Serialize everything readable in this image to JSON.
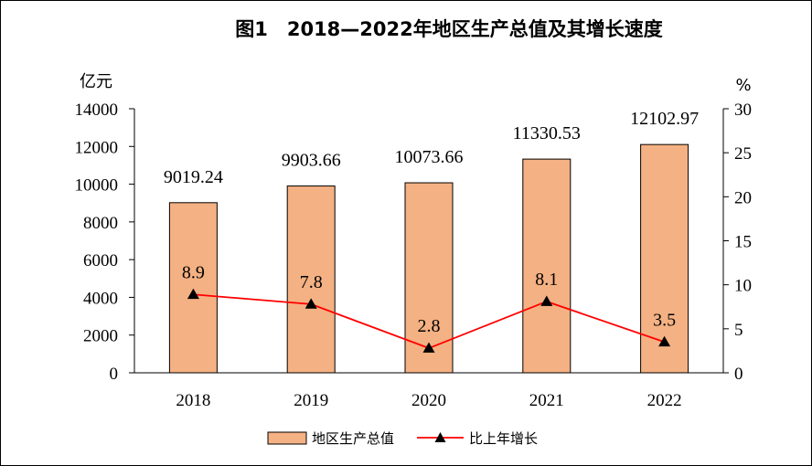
{
  "chart_data": {
    "type": "bar",
    "title": "图1　2018—2022年地区生产总值及其增长速度",
    "left_axis_unit": "亿元",
    "right_axis_unit": "%",
    "categories": [
      "2018",
      "2019",
      "2020",
      "2021",
      "2022"
    ],
    "y_left_ticks": [
      "0",
      "2000",
      "4000",
      "6000",
      "8000",
      "10000",
      "12000",
      "14000"
    ],
    "y_right_ticks": [
      "0",
      "5",
      "10",
      "15",
      "20",
      "25",
      "30"
    ],
    "ylim_left": [
      0,
      14000
    ],
    "ylim_right": [
      0,
      30
    ],
    "grid": false,
    "legend_position": "bottom",
    "series": [
      {
        "name": "地区生产总值",
        "type": "bar",
        "axis": "left",
        "color": "#F4B183",
        "values": [
          9019.24,
          9903.66,
          10073.66,
          11330.53,
          12102.97
        ],
        "labels": [
          "9019.24",
          "9903.66",
          "10073.66",
          "11330.53",
          "12102.97"
        ]
      },
      {
        "name": "比上年增长",
        "type": "line",
        "axis": "right",
        "color": "#FF0000",
        "marker": "triangle",
        "marker_color": "#000000",
        "values": [
          8.9,
          7.8,
          2.8,
          8.1,
          3.5
        ],
        "labels": [
          "8.9",
          "7.8",
          "2.8",
          "8.1",
          "3.5"
        ]
      }
    ]
  }
}
